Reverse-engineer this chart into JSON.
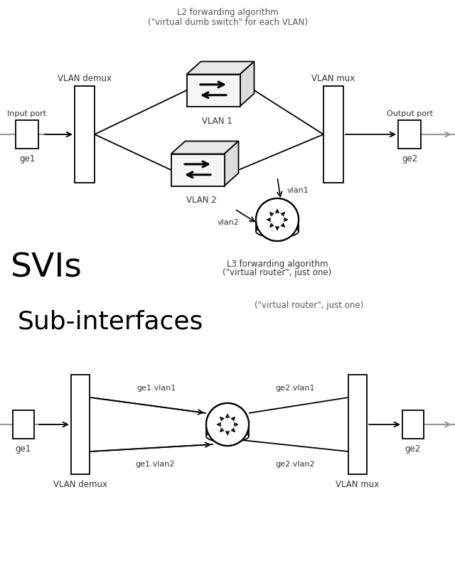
{
  "bg_color": "#ffffff",
  "line_color": "#000000",
  "gray_line_color": "#999999",
  "fig_width": 6.4,
  "fig_height": 8.28,
  "svi_title": "SVIs",
  "sub_title": "Sub-interfaces",
  "l2_label_line1": "L2 forwarding algorithm",
  "l2_label_line2": "(\"virtual dumb switch\" for each VLAN)",
  "l3_label_line1": "L3 forwarding algorithm",
  "l3_label_line2": "(\"virtual router\", just one)",
  "vlan_demux_label_top": "VLAN demux",
  "vlan_mux_label_top": "VLAN mux",
  "input_port_label": "Input port",
  "output_port_label": "Output port",
  "ge1_label_top": "ge1",
  "ge2_label_top": "ge2",
  "vlan1_label": "VLAN 1",
  "vlan2_label": "VLAN 2",
  "vlan1_svi_label": "vlan1",
  "vlan2_svi_label": "vlan2",
  "vlan_demux_label_bot": "VLAN demux",
  "vlan_mux_label_bot": "VLAN mux",
  "ge1_label_bot": "ge1",
  "ge2_label_bot": "ge2",
  "ge1vlan1_label": "ge1.vlan1",
  "ge1vlan2_label": "ge1.vlan2",
  "ge2vlan1_label": "ge2.vlan1",
  "ge2vlan2_label": "ge2.vlan2"
}
